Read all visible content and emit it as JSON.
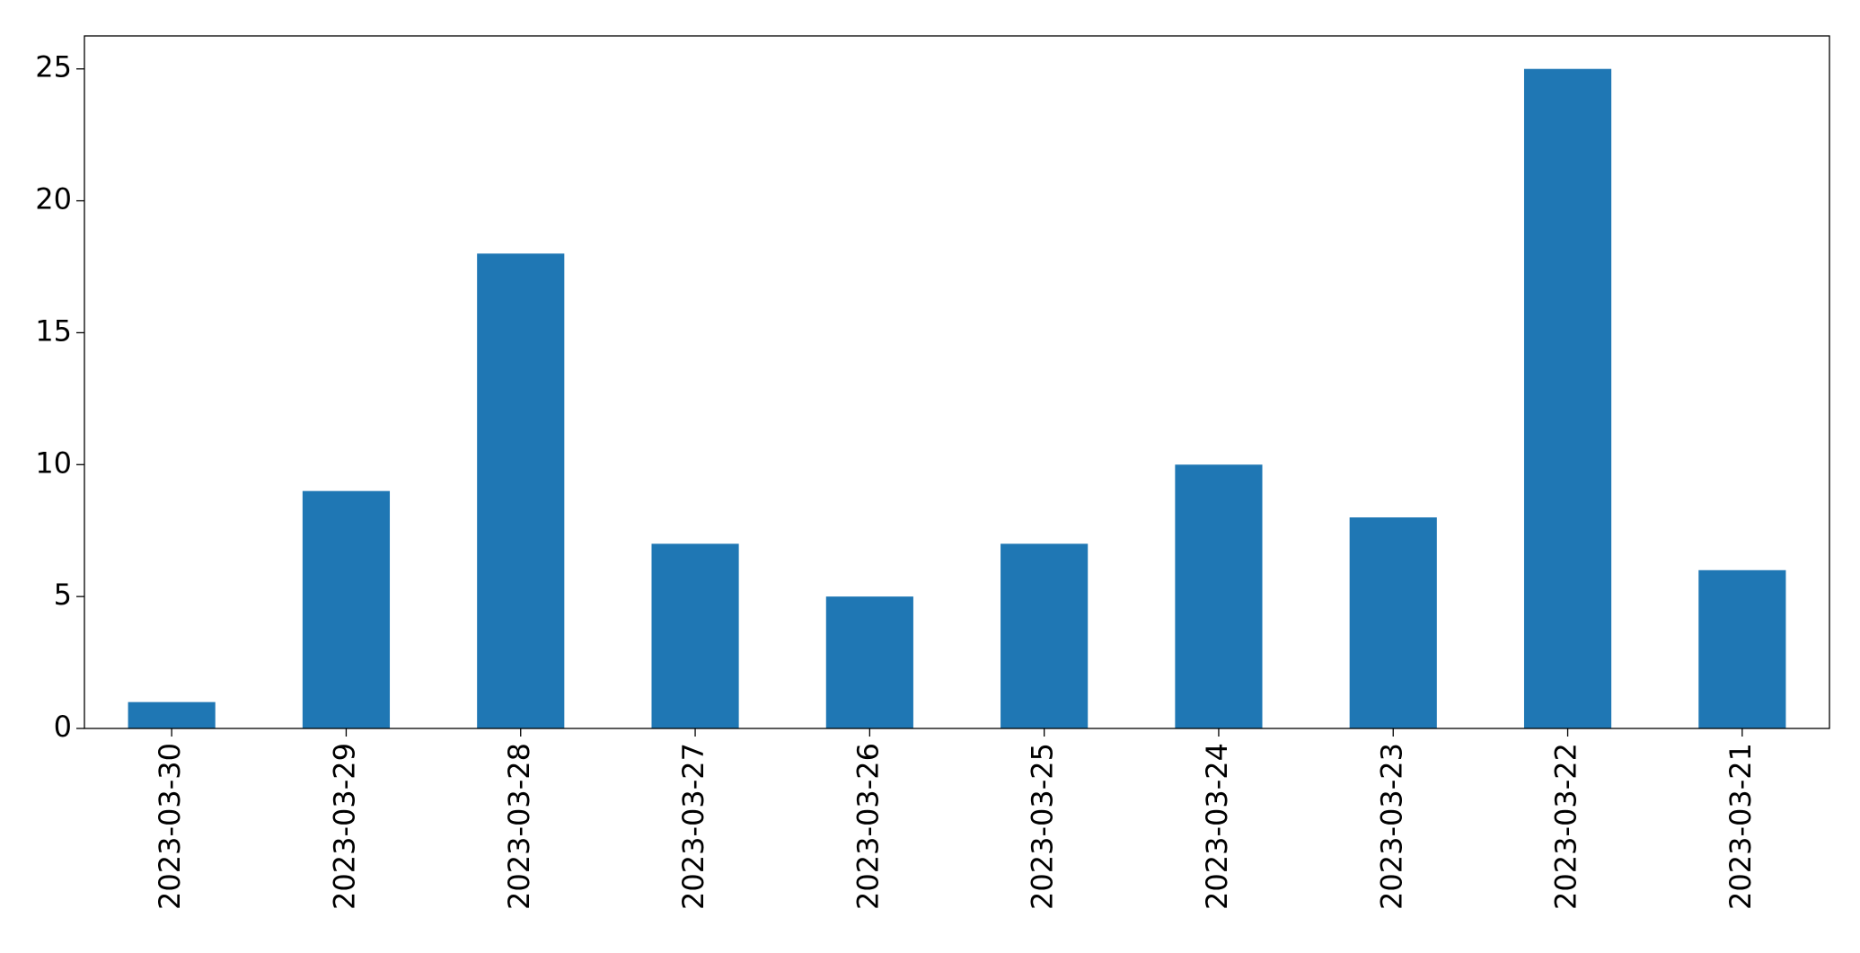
{
  "chart_data": {
    "type": "bar",
    "categories": [
      "2023-03-30",
      "2023-03-29",
      "2023-03-28",
      "2023-03-27",
      "2023-03-26",
      "2023-03-25",
      "2023-03-24",
      "2023-03-23",
      "2023-03-22",
      "2023-03-21"
    ],
    "values": [
      1,
      9,
      18,
      7,
      5,
      7,
      10,
      8,
      25,
      6
    ],
    "color": "#1f77b4",
    "ylim": [
      0,
      26.25
    ],
    "yticks": [
      0,
      5,
      10,
      15,
      20,
      25
    ],
    "grid": false
  }
}
